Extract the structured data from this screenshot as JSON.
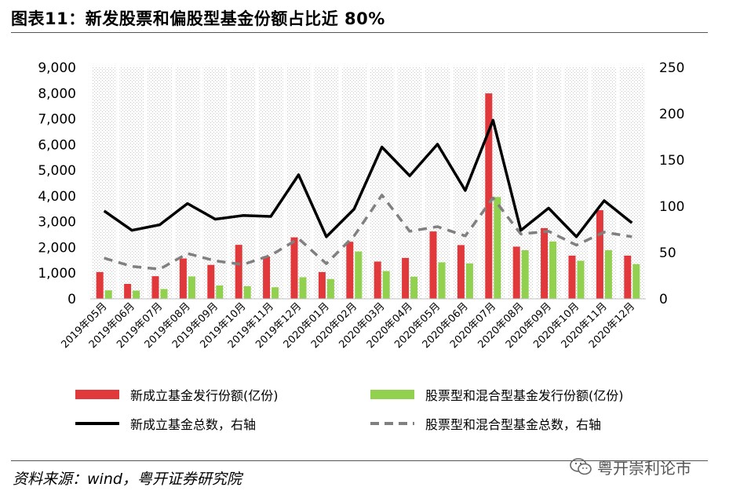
{
  "title": "图表11：新发股票和偏股型基金份额占比近 80%",
  "source": "资料来源：wind，粤开证券研究院",
  "watermark": "粤开崇利论市",
  "colors": {
    "red_bar": "#e0383b",
    "green_bar": "#92d050",
    "black_line": "#000000",
    "gray_dash": "#808080",
    "hatch": "#d9d9d9"
  },
  "chart_data": {
    "type": "bar",
    "title": "",
    "categories": [
      "2019年05月",
      "2019年06月",
      "2019年07月",
      "2019年08月",
      "2019年09月",
      "2019年10月",
      "2019年11月",
      "2019年12月",
      "2020年01月",
      "2020年02月",
      "2020年03月",
      "2020年04月",
      "2020年05月",
      "2020年06月",
      "2020年07月",
      "2020年08月",
      "2020年09月",
      "2020年10月",
      "2020年11月",
      "2020年12月"
    ],
    "y_left": {
      "min": 0,
      "max": 9000,
      "ticks": [
        "0",
        "1,000",
        "2,000",
        "3,000",
        "4,000",
        "5,000",
        "6,000",
        "7,000",
        "8,000",
        "9,000"
      ]
    },
    "y_right": {
      "min": 0,
      "max": 250,
      "ticks": [
        "0",
        "50",
        "100",
        "150",
        "200",
        "250"
      ]
    },
    "series": [
      {
        "name": "新成立基金发行份额(亿份)",
        "type": "bar",
        "axis": "left",
        "values": [
          1040,
          580,
          880,
          1570,
          1320,
          2100,
          1650,
          2390,
          1040,
          2220,
          1450,
          1590,
          2620,
          2090,
          7990,
          2030,
          2750,
          1680,
          3450,
          1680
        ]
      },
      {
        "name": "股票型和混合型基金发行份额(亿份)",
        "type": "bar",
        "axis": "left",
        "values": [
          330,
          320,
          380,
          870,
          520,
          490,
          450,
          840,
          770,
          1840,
          1080,
          860,
          1420,
          1380,
          3960,
          1890,
          2230,
          1480,
          1890,
          1350
        ]
      },
      {
        "name": "新成立基金总数，右轴",
        "type": "line",
        "axis": "right",
        "values": [
          95,
          74,
          80,
          103,
          86,
          90,
          89,
          134,
          67,
          97,
          164,
          133,
          167,
          117,
          193,
          74,
          98,
          67,
          106,
          82
        ]
      },
      {
        "name": "股票型和混合型基金总数，右轴",
        "type": "line",
        "style": "dashed",
        "axis": "right",
        "values": [
          44,
          35,
          32,
          49,
          41,
          37,
          47,
          65,
          38,
          68,
          112,
          73,
          78,
          68,
          109,
          70,
          73,
          58,
          72,
          67
        ]
      }
    ],
    "grid": "vertical hatch background",
    "legend_position": "bottom"
  }
}
